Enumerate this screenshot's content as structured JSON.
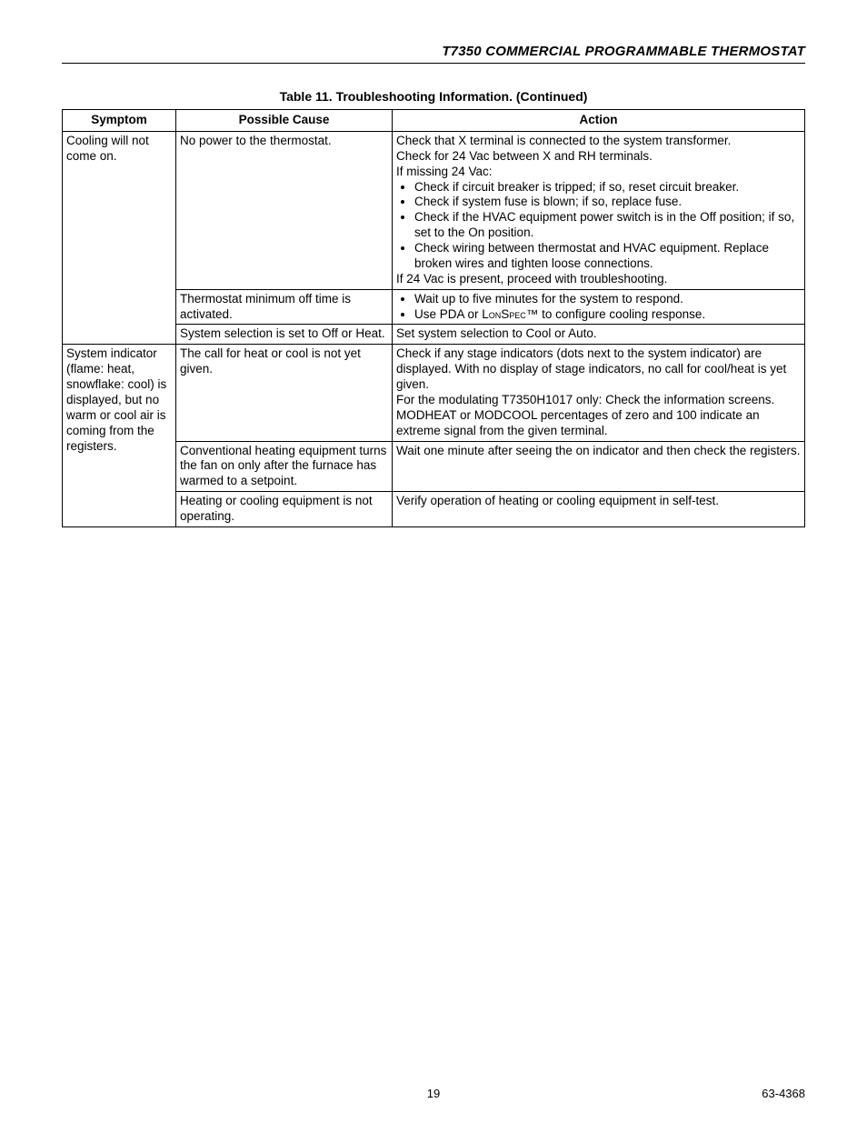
{
  "header": {
    "title": "T7350 COMMERCIAL PROGRAMMABLE THERMOSTAT"
  },
  "table": {
    "caption": "Table 11. Troubleshooting Information. (Continued)",
    "columns": {
      "symptom": "Symptom",
      "cause": "Possible Cause",
      "action": "Action"
    },
    "symptom1": "Cooling will not come on.",
    "row1": {
      "cause": "No power to the thermostat.",
      "action_pre1": "Check that X terminal is connected to the system transformer.",
      "action_pre2": "Check for 24 Vac between X and RH terminals.",
      "action_pre3": "If missing 24 Vac:",
      "action_b1": "Check if circuit breaker is tripped; if so, reset circuit breaker.",
      "action_b2": "Check if system fuse is blown; if so, replace fuse.",
      "action_b3": "Check if the HVAC equipment power switch is in the Off position; if so, set to the On position.",
      "action_b4": "Check wiring between thermostat and HVAC equipment. Replace broken wires and tighten loose connections.",
      "action_post": "If 24 Vac is present, proceed with troubleshooting."
    },
    "row2": {
      "cause": "Thermostat minimum off time is activated.",
      "action_b1": "Wait up to five minutes for the system to respond.",
      "action_b2_pre": "Use PDA or ",
      "action_b2_word": "LonSpec",
      "action_b2_post": "™ to configure cooling response."
    },
    "row3": {
      "cause": "System selection is set to Off or Heat.",
      "action": "Set system selection to Cool or Auto."
    },
    "symptom2": "System indicator (flame: heat, snowflake: cool) is displayed, but no warm or cool air is coming from the registers.",
    "row4": {
      "cause": "The call for heat or cool is not yet given.",
      "action_l1": "Check if any stage indicators (dots next to the system indicator) are displayed. With no display of stage indicators, no call for cool/heat is yet given.",
      "action_l2": "For the modulating T7350H1017 only: Check the information screens. MODHEAT or MODCOOL percentages of zero and 100 indicate an extreme signal from the given terminal."
    },
    "row5": {
      "cause": "Conventional heating equipment turns the fan on only after the furnace has warmed to a setpoint.",
      "action": "Wait one minute after seeing the on indicator and then check the registers."
    },
    "row6": {
      "cause": "Heating or cooling equipment is not operating.",
      "action": "Verify operation of heating or cooling equipment in self-test."
    }
  },
  "footer": {
    "page": "19",
    "doc": "63-4368"
  }
}
